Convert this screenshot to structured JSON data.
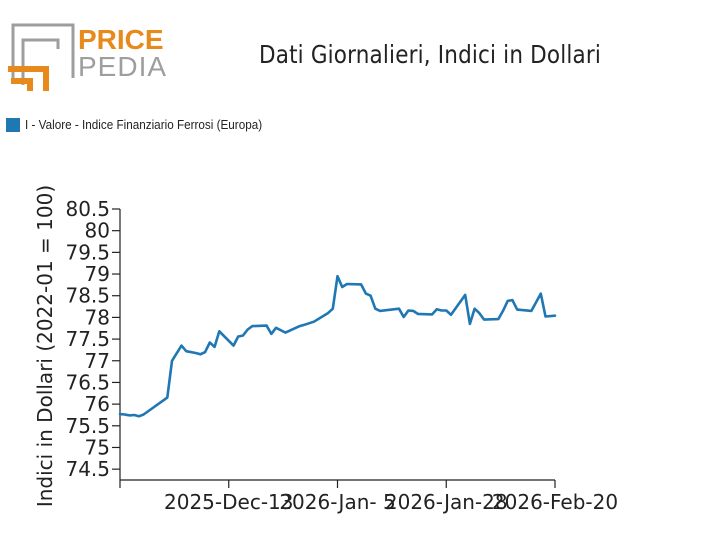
{
  "brand": {
    "line1": "PRICE",
    "line2": "PEDIA",
    "accent": "#e8891b",
    "gray": "#9e9e9e"
  },
  "title": "Dati Giornalieri, Indici in Dollari",
  "legend": {
    "label": "I - Valore - Indice Finanziario Ferrosi (Europa)",
    "color": "#1f77b4"
  },
  "chart_data": {
    "type": "line",
    "title": "Dati Giornalieri, Indici in Dollari",
    "xlabel": "",
    "ylabel": "Indici in Dollari (2022-01 = 100)",
    "ylim": [
      74.25,
      80.5
    ],
    "yticks": [
      74.5,
      75,
      75.5,
      76,
      76.5,
      77,
      77.5,
      78,
      78.5,
      79,
      79.5,
      80,
      80.5
    ],
    "xrange": [
      "2025-Nov-20",
      "2026-Feb-20"
    ],
    "xticks": [
      "2025-Dec-13",
      "2026-Jan- 5",
      "2026-Jan-28",
      "2026-Feb-20"
    ],
    "grid": false,
    "legend_position": "top-left",
    "series": [
      {
        "name": "I - Valore - Indice Finanziario Ferrosi (Europa)",
        "color": "#1f77b4",
        "points": [
          [
            "2025-Nov-20",
            75.77
          ],
          [
            "2025-Nov-21",
            75.76
          ],
          [
            "2025-Nov-22",
            75.74
          ],
          [
            "2025-Nov-23",
            75.75
          ],
          [
            "2025-Nov-24",
            75.72
          ],
          [
            "2025-Nov-25",
            75.76
          ],
          [
            "2025-Nov-30",
            76.15
          ],
          [
            "2025-Dec-01",
            77.0
          ],
          [
            "2025-Dec-03",
            77.35
          ],
          [
            "2025-Dec-04",
            77.22
          ],
          [
            "2025-Dec-06",
            77.18
          ],
          [
            "2025-Dec-07",
            77.15
          ],
          [
            "2025-Dec-08",
            77.2
          ],
          [
            "2025-Dec-09",
            77.42
          ],
          [
            "2025-Dec-10",
            77.32
          ],
          [
            "2025-Dec-11",
            77.68
          ],
          [
            "2025-Dec-14",
            77.35
          ],
          [
            "2025-Dec-15",
            77.56
          ],
          [
            "2025-Dec-16",
            77.58
          ],
          [
            "2025-Dec-17",
            77.72
          ],
          [
            "2025-Dec-18",
            77.8
          ],
          [
            "2025-Dec-21",
            77.81
          ],
          [
            "2025-Dec-22",
            77.62
          ],
          [
            "2025-Dec-23",
            77.76
          ],
          [
            "2025-Dec-25",
            77.65
          ],
          [
            "2025-Dec-28",
            77.8
          ],
          [
            "2025-Dec-29",
            77.83
          ],
          [
            "2025-Dec-31",
            77.9
          ],
          [
            "2026-Jan-03",
            78.1
          ],
          [
            "2026-Jan-04",
            78.2
          ],
          [
            "2026-Jan-05",
            78.95
          ],
          [
            "2026-Jan-06",
            78.7
          ],
          [
            "2026-Jan-07",
            78.77
          ],
          [
            "2026-Jan-10",
            78.76
          ],
          [
            "2026-Jan-11",
            78.55
          ],
          [
            "2026-Jan-12",
            78.5
          ],
          [
            "2026-Jan-13",
            78.2
          ],
          [
            "2026-Jan-14",
            78.15
          ],
          [
            "2026-Jan-18",
            78.2
          ],
          [
            "2026-Jan-19",
            78.01
          ],
          [
            "2026-Jan-20",
            78.16
          ],
          [
            "2026-Jan-21",
            78.15
          ],
          [
            "2026-Jan-22",
            78.08
          ],
          [
            "2026-Jan-25",
            78.07
          ],
          [
            "2026-Jan-26",
            78.19
          ],
          [
            "2026-Jan-27",
            78.16
          ],
          [
            "2026-Jan-28",
            78.16
          ],
          [
            "2026-Jan-29",
            78.06
          ],
          [
            "2026-Feb-01",
            78.52
          ],
          [
            "2026-Feb-02",
            77.85
          ],
          [
            "2026-Feb-03",
            78.2
          ],
          [
            "2026-Feb-04",
            78.1
          ],
          [
            "2026-Feb-05",
            77.95
          ],
          [
            "2026-Feb-08",
            77.96
          ],
          [
            "2026-Feb-09",
            78.15
          ],
          [
            "2026-Feb-10",
            78.38
          ],
          [
            "2026-Feb-11",
            78.4
          ],
          [
            "2026-Feb-12",
            78.18
          ],
          [
            "2026-Feb-15",
            78.15
          ],
          [
            "2026-Feb-17",
            78.55
          ],
          [
            "2026-Feb-18",
            78.02
          ],
          [
            "2026-Feb-20",
            78.04
          ]
        ]
      }
    ]
  }
}
